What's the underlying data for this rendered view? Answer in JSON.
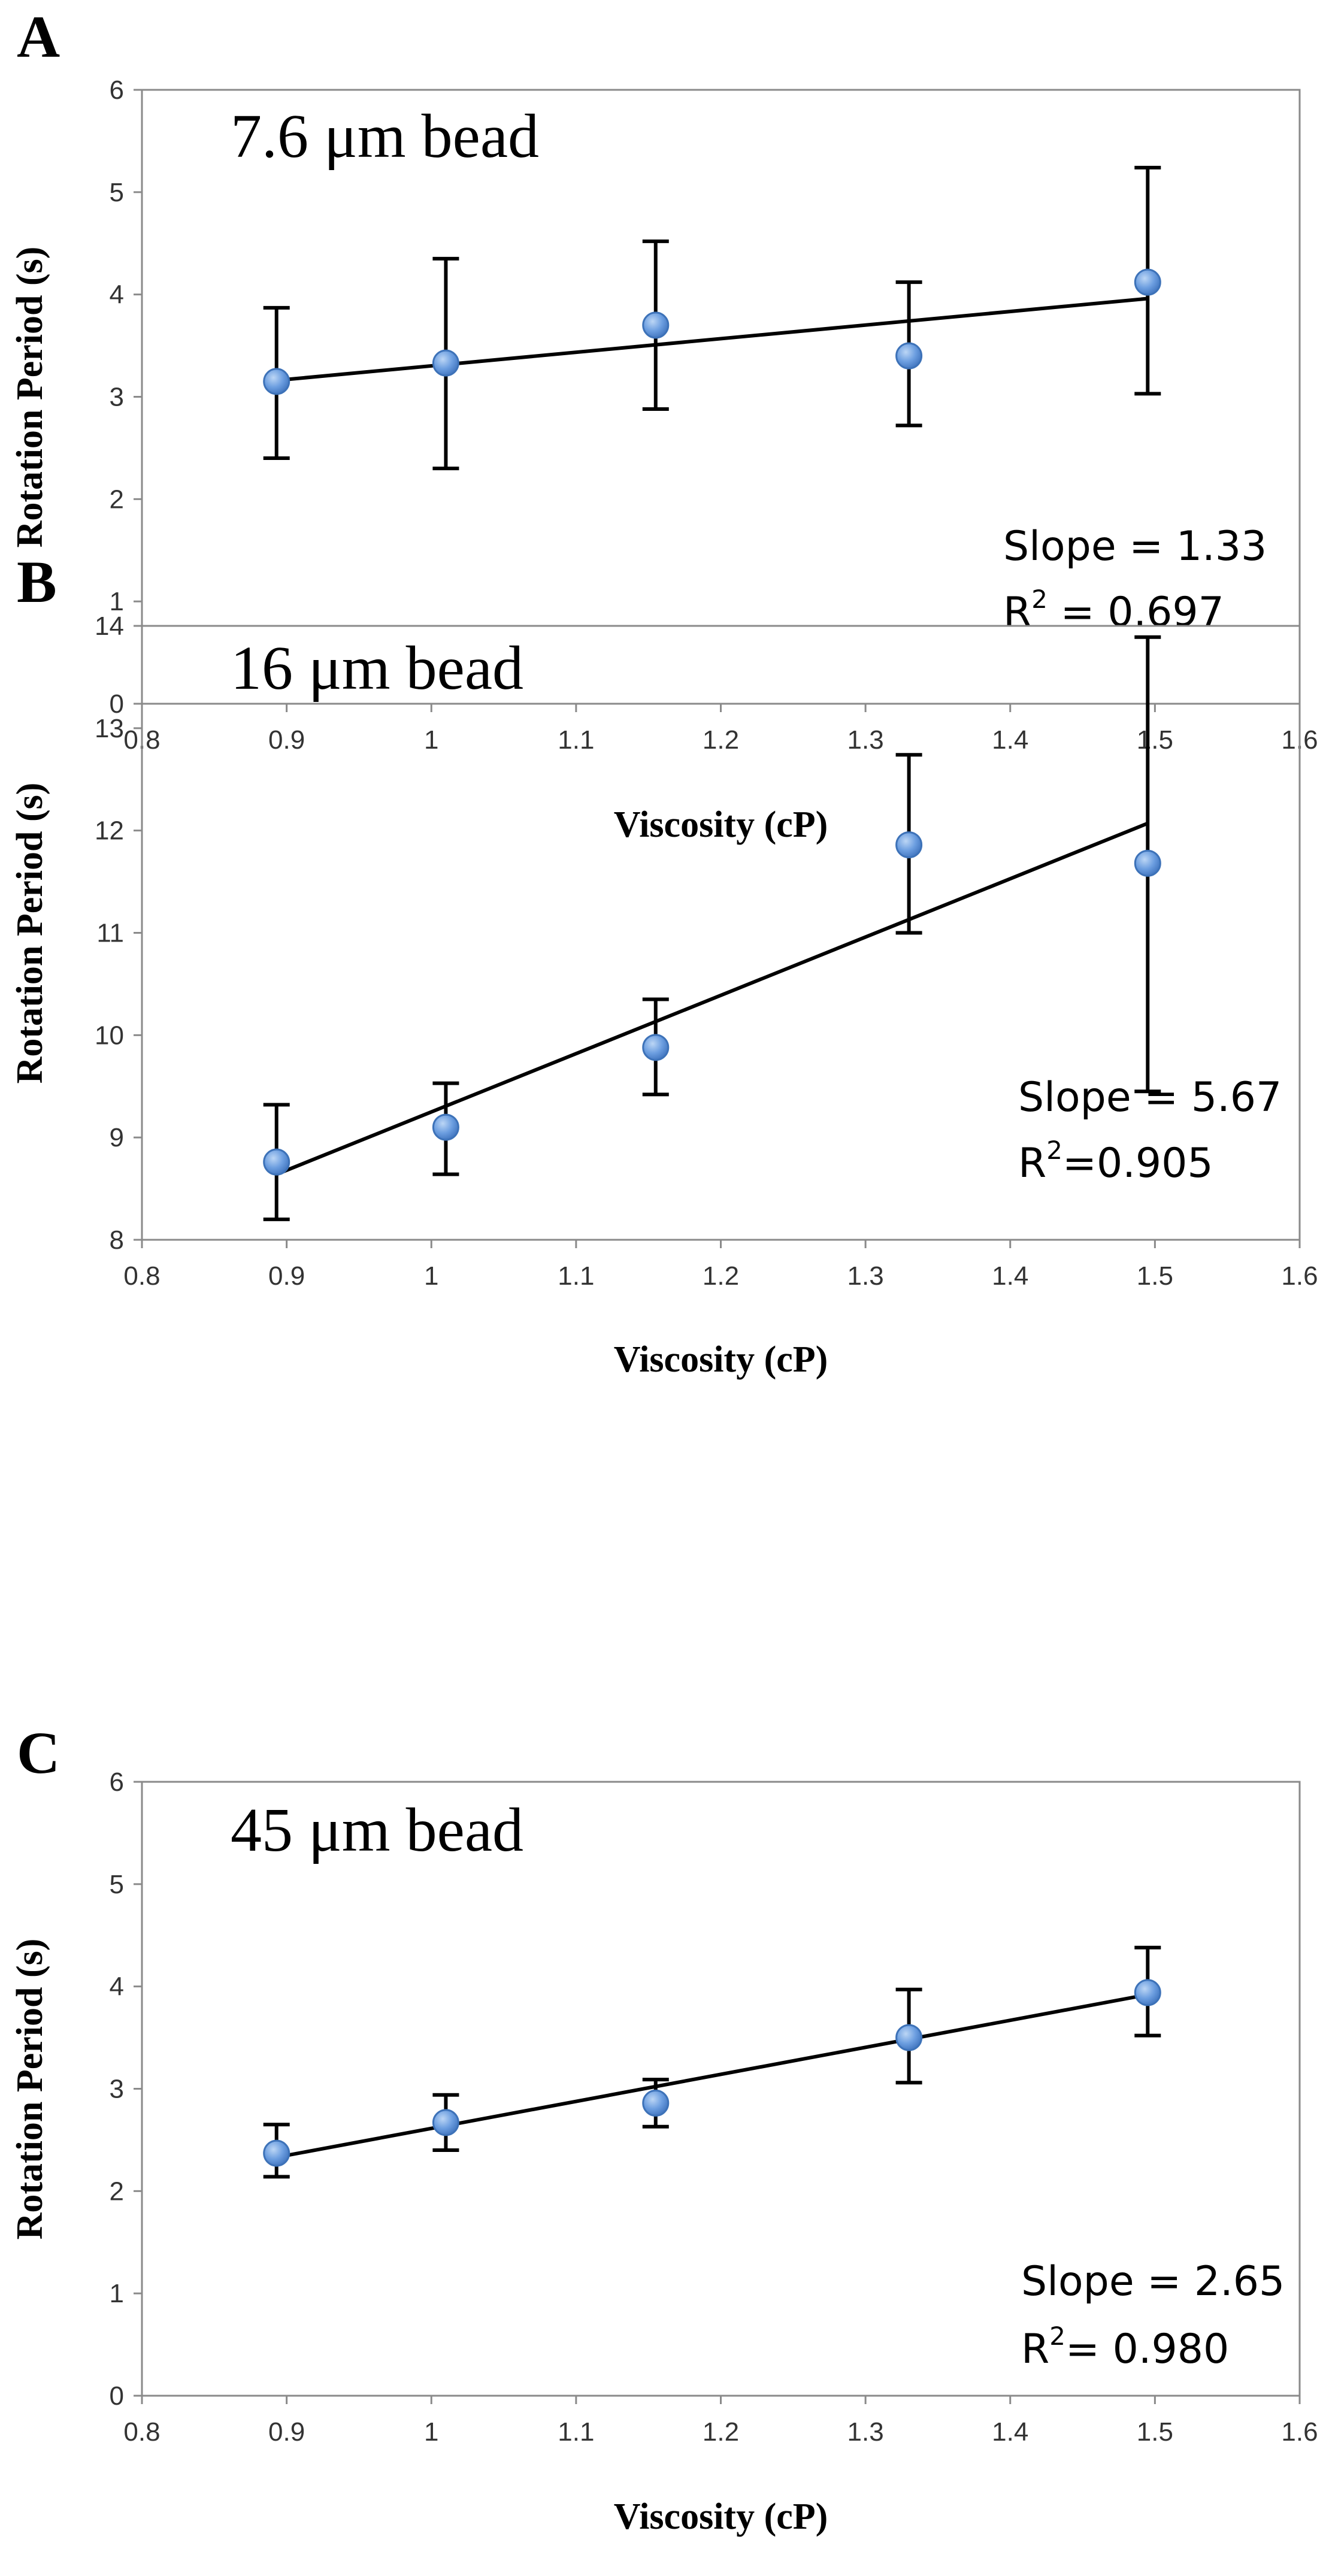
{
  "chart_data": [
    {
      "panel": "A",
      "type": "scatter",
      "title": "7.6 μm bead",
      "xlabel": "Viscosity (cP)",
      "ylabel": "Rotation Period (s)",
      "xlim": [
        0.8,
        1.6
      ],
      "ylim": [
        0,
        6
      ],
      "xticks": [
        "0.8",
        "0.9",
        "1",
        "1.1",
        "1.2",
        "1.3",
        "1.4",
        "1.5",
        "1.6"
      ],
      "yticks": [
        "0",
        "1",
        "2",
        "3",
        "4",
        "5",
        "6"
      ],
      "x": [
        0.893,
        1.01,
        1.155,
        1.33,
        1.495
      ],
      "y": [
        3.15,
        3.33,
        3.7,
        3.4,
        4.12
      ],
      "err_low": [
        2.4,
        2.3,
        2.88,
        2.72,
        3.03
      ],
      "err_high": [
        3.87,
        4.35,
        4.52,
        4.12,
        5.24
      ],
      "trendline": {
        "x": [
          0.893,
          1.495
        ],
        "y": [
          3.16,
          3.96
        ]
      },
      "slope_text": "Slope = 1.33",
      "r2_label": "R",
      "r2_sup": "2",
      "r2_value": " = 0.697"
    },
    {
      "panel": "B",
      "type": "scatter",
      "title": "16 μm bead",
      "xlabel": "Viscosity (cP)",
      "ylabel": "Rotation Period (s)",
      "xlim": [
        0.8,
        1.6
      ],
      "ylim": [
        8,
        14
      ],
      "xticks": [
        "0.8",
        "0.9",
        "1",
        "1.1",
        "1.2",
        "1.3",
        "1.4",
        "1.5",
        "1.6"
      ],
      "yticks": [
        "8",
        "9",
        "10",
        "11",
        "12",
        "13",
        "14"
      ],
      "x": [
        0.893,
        1.01,
        1.155,
        1.33,
        1.495
      ],
      "y": [
        8.76,
        9.1,
        9.88,
        11.86,
        11.68
      ],
      "err_low": [
        8.2,
        8.64,
        9.42,
        11.0,
        9.45
      ],
      "err_high": [
        9.32,
        9.53,
        10.35,
        12.74,
        13.89
      ],
      "trendline": {
        "x": [
          0.893,
          1.495
        ],
        "y": [
          8.64,
          12.07
        ]
      },
      "slope_text": "Slope = 5.67",
      "r2_label": "R",
      "r2_sup": "2",
      "r2_value": "=0.905"
    },
    {
      "panel": "C",
      "type": "scatter",
      "title": "45 μm bead",
      "xlabel": "Viscosity (cP)",
      "ylabel": "Rotation Period (s)",
      "xlim": [
        0.8,
        1.6
      ],
      "ylim": [
        0,
        6
      ],
      "xticks": [
        "0.8",
        "0.9",
        "1",
        "1.1",
        "1.2",
        "1.3",
        "1.4",
        "1.5",
        "1.6"
      ],
      "yticks": [
        "0",
        "1",
        "2",
        "3",
        "4",
        "5",
        "6"
      ],
      "x": [
        0.893,
        1.01,
        1.155,
        1.33,
        1.495
      ],
      "y": [
        2.37,
        2.67,
        2.86,
        3.5,
        3.94
      ],
      "err_low": [
        2.14,
        2.4,
        2.63,
        3.06,
        3.52
      ],
      "err_high": [
        2.65,
        2.94,
        3.09,
        3.97,
        4.38
      ],
      "trendline": {
        "x": [
          0.893,
          1.495
        ],
        "y": [
          2.33,
          3.92
        ]
      },
      "slope_text": "Slope = 2.65",
      "r2_label": "R",
      "r2_sup": "2",
      "r2_value": "= 0.980"
    }
  ]
}
